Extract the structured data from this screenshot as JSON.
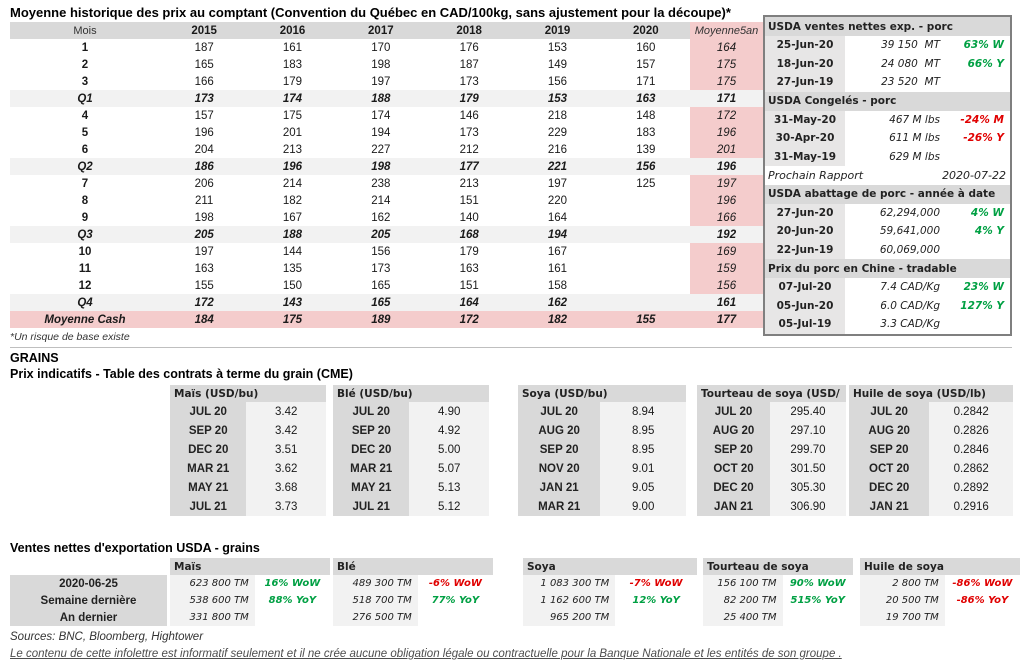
{
  "title": "Moyenne historique des prix au comptant (Convention du Québec en CAD/100kg, sans ajustement pour la découpe)*",
  "footnote": "*Un risque de base existe",
  "colors": {
    "up": "#00A043",
    "down": "#E00000",
    "pink": "#F4CCCC",
    "header_gray": "#D9D9D9",
    "light_gray": "#F2F2F2",
    "date_gray": "#E7E6E6",
    "border_gray": "#7F7F7F"
  },
  "price_table": {
    "columns": [
      "Mois",
      "2015",
      "2016",
      "2017",
      "2018",
      "2019",
      "2020",
      "Moyenne5an"
    ],
    "rows": [
      {
        "label": "1",
        "type": "month",
        "values": [
          "187",
          "161",
          "170",
          "176",
          "153",
          "160",
          "164"
        ]
      },
      {
        "label": "2",
        "type": "month",
        "values": [
          "165",
          "183",
          "198",
          "187",
          "149",
          "157",
          "175"
        ]
      },
      {
        "label": "3",
        "type": "month",
        "values": [
          "166",
          "179",
          "197",
          "173",
          "156",
          "171",
          "175"
        ]
      },
      {
        "label": "Q1",
        "type": "quarter",
        "values": [
          "173",
          "174",
          "188",
          "179",
          "153",
          "163",
          "171"
        ]
      },
      {
        "label": "4",
        "type": "month",
        "values": [
          "157",
          "175",
          "174",
          "146",
          "218",
          "148",
          "172"
        ]
      },
      {
        "label": "5",
        "type": "month",
        "values": [
          "196",
          "201",
          "194",
          "173",
          "229",
          "183",
          "196"
        ]
      },
      {
        "label": "6",
        "type": "month",
        "values": [
          "204",
          "213",
          "227",
          "212",
          "216",
          "139",
          "201"
        ]
      },
      {
        "label": "Q2",
        "type": "quarter",
        "values": [
          "186",
          "196",
          "198",
          "177",
          "221",
          "156",
          "196"
        ]
      },
      {
        "label": "7",
        "type": "month",
        "values": [
          "206",
          "214",
          "238",
          "213",
          "197",
          "125",
          "197"
        ]
      },
      {
        "label": "8",
        "type": "month",
        "values": [
          "211",
          "182",
          "214",
          "151",
          "220",
          "",
          "196"
        ]
      },
      {
        "label": "9",
        "type": "month",
        "values": [
          "198",
          "167",
          "162",
          "140",
          "164",
          "",
          "166"
        ]
      },
      {
        "label": "Q3",
        "type": "quarter",
        "values": [
          "205",
          "188",
          "205",
          "168",
          "194",
          "",
          "192"
        ]
      },
      {
        "label": "10",
        "type": "month",
        "values": [
          "197",
          "144",
          "156",
          "179",
          "167",
          "",
          "169"
        ]
      },
      {
        "label": "11",
        "type": "month",
        "values": [
          "163",
          "135",
          "173",
          "163",
          "161",
          "",
          "159"
        ]
      },
      {
        "label": "12",
        "type": "month",
        "values": [
          "155",
          "150",
          "165",
          "151",
          "158",
          "",
          "156"
        ]
      },
      {
        "label": "Q4",
        "type": "quarter",
        "values": [
          "172",
          "143",
          "165",
          "164",
          "162",
          "",
          "161"
        ]
      },
      {
        "label": "Moyenne Cash",
        "type": "total",
        "values": [
          "184",
          "175",
          "189",
          "172",
          "182",
          "155",
          "177"
        ]
      }
    ]
  },
  "sidebar": {
    "sections": [
      {
        "header": "USDA ventes nettes exp. - porc",
        "rows": [
          {
            "date": "25-Jun-20",
            "value": "39 150  MT",
            "pct": "63% W",
            "dir": "up"
          },
          {
            "date": "18-Jun-20",
            "value": "24 080  MT",
            "pct": "66% Y",
            "dir": "up"
          },
          {
            "date": "27-Jun-19",
            "value": "23 520  MT",
            "pct": "",
            "dir": ""
          }
        ]
      },
      {
        "header": "USDA Congelés - porc",
        "rows": [
          {
            "date": "31-May-20",
            "value": "467 M lbs",
            "pct": "-24% M",
            "dir": "down"
          },
          {
            "date": "30-Apr-20",
            "value": "611 M lbs",
            "pct": "-26% Y",
            "dir": "down"
          },
          {
            "date": "31-May-19",
            "value": "629 M lbs",
            "pct": "",
            "dir": ""
          }
        ]
      },
      {
        "report": true,
        "label": "Prochain Rapport",
        "value": "2020-07-22"
      },
      {
        "header": "USDA abattage de porc - année à date",
        "rows": [
          {
            "date": "27-Jun-20",
            "value": "62,294,000",
            "pct": "4% W",
            "dir": "up"
          },
          {
            "date": "20-Jun-20",
            "value": "59,641,000",
            "pct": "4% Y",
            "dir": "up"
          },
          {
            "date": "22-Jun-19",
            "value": "60,069,000",
            "pct": "",
            "dir": ""
          }
        ]
      },
      {
        "header": "Prix du porc en Chine - tradable",
        "rows": [
          {
            "date": "07-Jul-20",
            "value": "7.4 CAD/Kg",
            "pct": "23% W",
            "dir": "up"
          },
          {
            "date": "05-Jun-20",
            "value": "6.0 CAD/Kg",
            "pct": "127% Y",
            "dir": "up"
          },
          {
            "date": "05-Jul-19",
            "value": "3.3 CAD/Kg",
            "pct": "",
            "dir": ""
          }
        ]
      }
    ]
  },
  "grains": {
    "heading": "GRAINS",
    "subheading": "Prix indicatifs - Table des contrats à terme du grain (CME)",
    "futures": [
      {
        "title": "Maïs (USD/bu)",
        "rows": [
          [
            "JUL 20",
            "3.42"
          ],
          [
            "SEP 20",
            "3.42"
          ],
          [
            "DEC 20",
            "3.51"
          ],
          [
            "MAR 21",
            "3.62"
          ],
          [
            "MAY 21",
            "3.68"
          ],
          [
            "JUL 21",
            "3.73"
          ]
        ]
      },
      {
        "title": "Blé (USD/bu)",
        "rows": [
          [
            "JUL 20",
            "4.90"
          ],
          [
            "SEP 20",
            "4.92"
          ],
          [
            "DEC 20",
            "5.00"
          ],
          [
            "MAR 21",
            "5.07"
          ],
          [
            "MAY 21",
            "5.13"
          ],
          [
            "JUL 21",
            "5.12"
          ]
        ]
      },
      {
        "title": "Soya (USD/bu)",
        "rows": [
          [
            "JUL 20",
            "8.94"
          ],
          [
            "AUG 20",
            "8.95"
          ],
          [
            "SEP 20",
            "8.95"
          ],
          [
            "NOV 20",
            "9.01"
          ],
          [
            "JAN 21",
            "9.05"
          ],
          [
            "MAR 21",
            "9.00"
          ]
        ]
      },
      {
        "title": "Tourteau de soya (USD/",
        "rows": [
          [
            "JUL 20",
            "295.40"
          ],
          [
            "AUG 20",
            "297.10"
          ],
          [
            "SEP 20",
            "299.70"
          ],
          [
            "OCT 20",
            "301.50"
          ],
          [
            "DEC 20",
            "305.30"
          ],
          [
            "JAN 21",
            "306.90"
          ]
        ]
      },
      {
        "title": "Huile de soya (USD/lb)",
        "rows": [
          [
            "JUL 20",
            "0.2842"
          ],
          [
            "AUG 20",
            "0.2826"
          ],
          [
            "SEP 20",
            "0.2846"
          ],
          [
            "OCT 20",
            "0.2862"
          ],
          [
            "DEC 20",
            "0.2892"
          ],
          [
            "JAN 21",
            "0.2916"
          ]
        ]
      }
    ]
  },
  "exports": {
    "title": "Ventes nettes d'exportation USDA - grains",
    "row_labels": [
      "2020-06-25",
      "Semaine dernière",
      "An dernier"
    ],
    "groups": [
      {
        "name": "Maïs",
        "rows": [
          {
            "value": "623 800 TM",
            "pct": "16% WoW",
            "dir": "up"
          },
          {
            "value": "538 600 TM",
            "pct": "88% YoY",
            "dir": "up"
          },
          {
            "value": "331 800 TM",
            "pct": "",
            "dir": ""
          }
        ]
      },
      {
        "name": "Blé",
        "rows": [
          {
            "value": "489 300 TM",
            "pct": "-6% WoW",
            "dir": "down"
          },
          {
            "value": "518 700 TM",
            "pct": "77% YoY",
            "dir": "up"
          },
          {
            "value": "276 500 TM",
            "pct": "",
            "dir": ""
          }
        ]
      },
      {
        "name": "Soya",
        "rows": [
          {
            "value": "1 083 300 TM",
            "pct": "-7% WoW",
            "dir": "down"
          },
          {
            "value": "1 162 600 TM",
            "pct": "12% YoY",
            "dir": "up"
          },
          {
            "value": "965 200 TM",
            "pct": "",
            "dir": ""
          }
        ]
      },
      {
        "name": "Tourteau de soya",
        "rows": [
          {
            "value": "156 100 TM",
            "pct": "90% WoW",
            "dir": "up"
          },
          {
            "value": "82 200 TM",
            "pct": "515% YoY",
            "dir": "up"
          },
          {
            "value": "25 400 TM",
            "pct": "",
            "dir": ""
          }
        ]
      },
      {
        "name": "Huile de soya",
        "rows": [
          {
            "value": "2 800 TM",
            "pct": "-86% WoW",
            "dir": "down"
          },
          {
            "value": "20 500 TM",
            "pct": "-86% YoY",
            "dir": "down"
          },
          {
            "value": "19 700 TM",
            "pct": "",
            "dir": ""
          }
        ]
      }
    ]
  },
  "footer": {
    "sources": "Sources: BNC, Bloomberg, Hightower",
    "disclaimer": "Le contenu de cette infolettre est informatif seulement et il ne crée aucune obligation légale ou contractuelle pour la Banque Nationale et les entités de son groupe ."
  }
}
